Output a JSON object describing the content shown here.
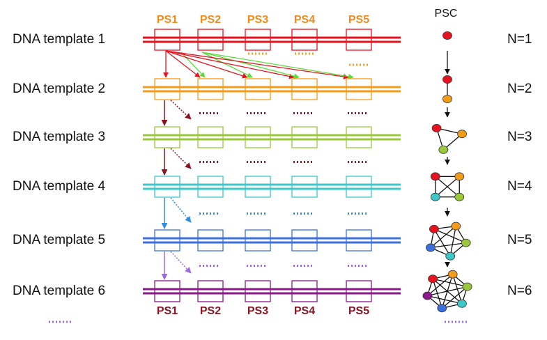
{
  "top_labels": [
    "PS1",
    "PS2",
    "PS3",
    "PS4",
    "PS5"
  ],
  "psc_label": "PSC",
  "rows": [
    {
      "label": "DNA template 1",
      "n": "N=1"
    },
    {
      "label": "DNA template 2",
      "n": "N=2"
    },
    {
      "label": "DNA template 3",
      "n": "N=3"
    },
    {
      "label": "DNA template 4",
      "n": "N=4"
    },
    {
      "label": "DNA template 5",
      "n": "N=5"
    },
    {
      "label": "DNA template 6",
      "n": "N=6"
    }
  ],
  "bottom_labels": [
    "PS1",
    "PS2",
    "PS3",
    "PS4",
    "PS5"
  ]
}
